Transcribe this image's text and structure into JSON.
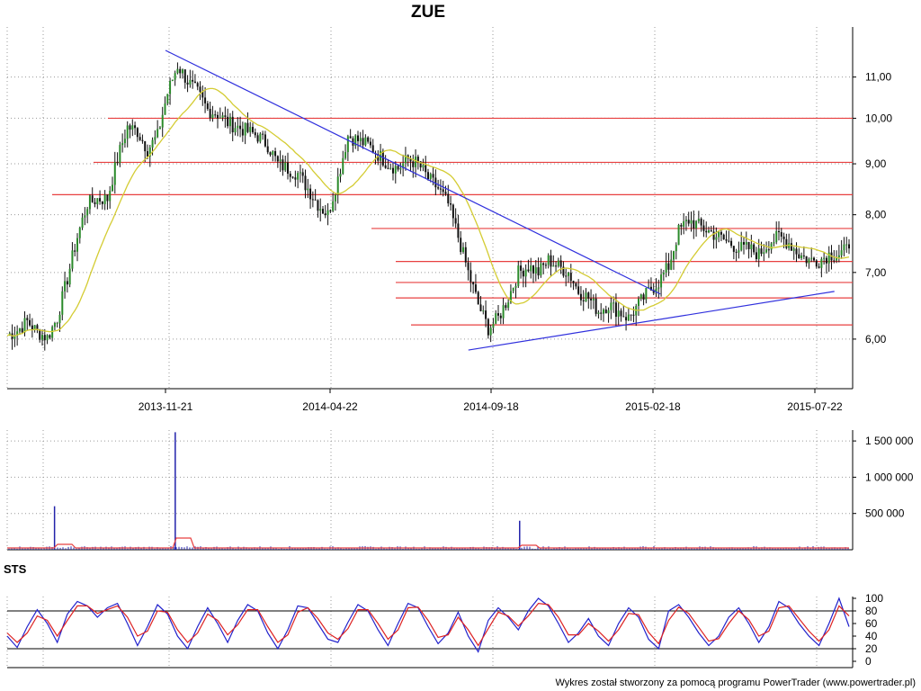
{
  "chart_data": [
    {
      "panel": "price",
      "type": "candlestick",
      "title": "ZUE",
      "x_tick_labels": [
        "2013-11-21",
        "2014-04-22",
        "2014-09-18",
        "2015-02-18",
        "2015-07-22"
      ],
      "y_tick_labels": [
        "6,00",
        "7,00",
        "8,00",
        "9,00",
        "10,00",
        "11,00"
      ],
      "y_ticks": [
        6,
        7,
        8,
        9,
        10,
        11
      ],
      "y_scale": "log",
      "ylim": [
        5.35,
        12.35
      ],
      "grid": true,
      "moving_average": {
        "color": "#d4cc33"
      },
      "series": [
        {
          "values": [
            6.05,
            6.12,
            6.25,
            6.1,
            6.02,
            6.3,
            6.9,
            7.6,
            8.2,
            8.3,
            8.3,
            9.1,
            9.8,
            9.7,
            9.3,
            9.6,
            10.6,
            11.3,
            10.9,
            10.6,
            10.2,
            10.1,
            9.9,
            9.8,
            9.7,
            9.6,
            9.4,
            9.0,
            8.9,
            8.8,
            8.5,
            8.2,
            8.0,
            8.7,
            9.6,
            9.5,
            9.4,
            9.2,
            9.0,
            8.9,
            9.1,
            9.0,
            8.7,
            8.5,
            8.2,
            7.6,
            7.0,
            6.5,
            6.15,
            6.3,
            6.6,
            7.0,
            7.1,
            7.0,
            7.2,
            7.1,
            7.0,
            6.7,
            6.6,
            6.4,
            6.5,
            6.4,
            6.3,
            6.5,
            6.7,
            6.85,
            7.1,
            7.7,
            7.9,
            7.8,
            7.7,
            7.6,
            7.5,
            7.4,
            7.4,
            7.3,
            7.5,
            7.6,
            7.5,
            7.3,
            7.2,
            7.2,
            7.3,
            7.3,
            7.4
          ]
        }
      ],
      "horizontal_lines": {
        "color": "#e84040",
        "levels": [
          10.0,
          9.03,
          8.38,
          7.75,
          7.18,
          6.84,
          6.6,
          6.2
        ]
      },
      "trend_lines": {
        "color": "#3030dd",
        "lines": [
          {
            "from": {
              "date": "2013-11-21",
              "value": 11.7
            },
            "to": {
              "date": "2015-02-25",
              "value": 6.66
            }
          },
          {
            "from": {
              "date": "2014-08-28",
              "value": 5.85
            },
            "to": {
              "date": "2015-08-06",
              "value": 6.7
            }
          }
        ]
      }
    },
    {
      "panel": "volume",
      "type": "bar",
      "y_tick_labels": [
        "500 000",
        "1 000 000",
        "1 500 000"
      ],
      "y_ticks": [
        500000,
        1000000,
        1500000
      ],
      "ylim": [
        0,
        1650000
      ],
      "spikes": [
        {
          "date": "2013-07-01",
          "value": 600000
        },
        {
          "date": "2013-11-30",
          "value": 1620000
        },
        {
          "date": "2014-10-15",
          "value": 400000
        }
      ],
      "average_line": {
        "color": "#e84040"
      }
    },
    {
      "panel": "STS",
      "type": "line",
      "title": "STS",
      "y_tick_labels": [
        "0",
        "20",
        "40",
        "60",
        "80",
        "100"
      ],
      "y_ticks": [
        0,
        20,
        40,
        60,
        80,
        100
      ],
      "ylim": [
        0,
        100
      ],
      "reference_lines": [
        20,
        80
      ],
      "series": [
        {
          "color": "#2222cc",
          "values": [
            40,
            22,
            55,
            82,
            60,
            30,
            75,
            95,
            88,
            70,
            85,
            92,
            60,
            25,
            55,
            90,
            75,
            40,
            20,
            55,
            85,
            60,
            30,
            65,
            90,
            80,
            45,
            20,
            50,
            88,
            85,
            60,
            35,
            30,
            62,
            90,
            80,
            50,
            25,
            60,
            92,
            85,
            55,
            28,
            45,
            78,
            40,
            15,
            65,
            85,
            70,
            50,
            80,
            100,
            88,
            60,
            30,
            45,
            68,
            40,
            25,
            60,
            85,
            70,
            35,
            20,
            80,
            90,
            70,
            45,
            25,
            40,
            70,
            85,
            60,
            30,
            55,
            95,
            85,
            60,
            40,
            25,
            60,
            100,
            55
          ]
        },
        {
          "color": "#dd2222",
          "values": [
            45,
            30,
            45,
            72,
            65,
            40,
            65,
            88,
            88,
            76,
            82,
            88,
            70,
            40,
            48,
            80,
            78,
            50,
            30,
            45,
            75,
            65,
            42,
            58,
            82,
            82,
            55,
            30,
            42,
            78,
            85,
            68,
            45,
            35,
            52,
            82,
            82,
            60,
            35,
            50,
            85,
            86,
            65,
            38,
            42,
            70,
            50,
            25,
            52,
            78,
            72,
            56,
            72,
            92,
            90,
            70,
            42,
            42,
            60,
            48,
            32,
            50,
            76,
            74,
            46,
            28,
            65,
            86,
            76,
            54,
            32,
            36,
            60,
            80,
            66,
            40,
            48,
            85,
            88,
            68,
            48,
            32,
            50,
            88,
            72
          ]
        }
      ]
    }
  ],
  "footer": {
    "credit": "Wykres został stworzony za pomocą programu PowerTrader (www.powertrader.pl)"
  }
}
